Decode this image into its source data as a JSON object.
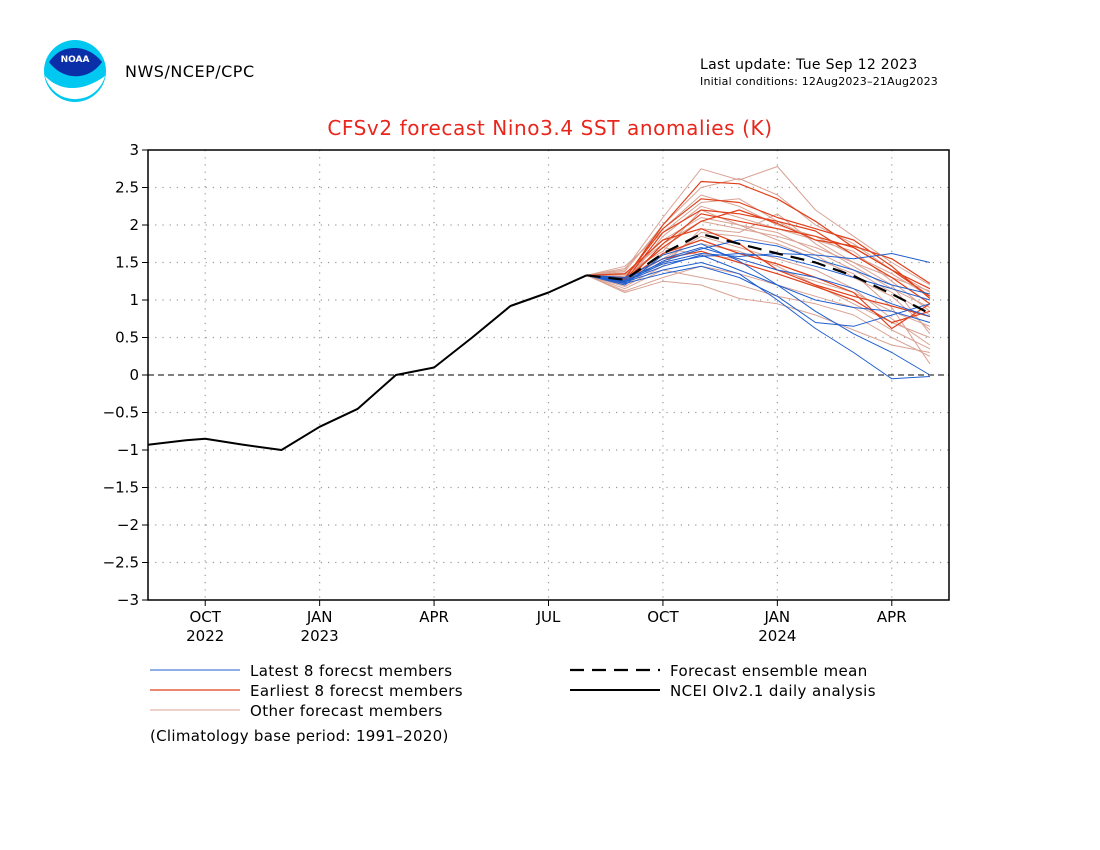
{
  "header": {
    "agency": "NWS/NCEP/CPC",
    "last_update": "Last update: Tue Sep 12 2023",
    "initial_conditions": "Initial conditions: 12Aug2023–21Aug2023",
    "logo_text": "NOAA"
  },
  "footer": {
    "base_period": "(Climatology base period: 1991–2020)"
  },
  "colors": {
    "title": "#e8261c",
    "latest": "#1f5fd0",
    "earliest": "#e0401a",
    "other": "#d9a394",
    "mean": "#000000",
    "analysis": "#000000"
  },
  "chart_data": {
    "type": "line",
    "title": "CFSv2 forecast Nino3.4 SST anomalies (K)",
    "xlabel": "",
    "ylabel": "",
    "x_units": "months from Sep 2022 (month midpoints)",
    "xlim": [
      -0.5,
      20.5
    ],
    "ylim": [
      -3,
      3
    ],
    "yticks": [
      3,
      2.5,
      2,
      1.5,
      1,
      0.5,
      0,
      -0.5,
      -1,
      -1.5,
      -2,
      -2.5,
      -3
    ],
    "ytick_labels": [
      "3",
      "2.5",
      "2",
      "1.5",
      "1",
      "0.5",
      "0",
      "−0.5",
      "−1",
      "−1.5",
      "−2",
      "−2.5",
      "−3"
    ],
    "xticks": [
      {
        "x": 1,
        "label": "OCT",
        "year": "2022"
      },
      {
        "x": 4,
        "label": "JAN",
        "year": "2023"
      },
      {
        "x": 7,
        "label": "APR",
        "year": ""
      },
      {
        "x": 10,
        "label": "JUL",
        "year": ""
      },
      {
        "x": 13,
        "label": "OCT",
        "year": ""
      },
      {
        "x": 16,
        "label": "JAN",
        "year": "2024"
      },
      {
        "x": 19,
        "label": "APR",
        "year": ""
      }
    ],
    "grid": true,
    "zero_line": true,
    "legend": [
      {
        "label": "Latest 8 forecst members",
        "style": "latest"
      },
      {
        "label": "Earliest 8 forecst members",
        "style": "earliest"
      },
      {
        "label": "Other forecast members",
        "style": "other"
      },
      {
        "label": "Forecast ensemble mean",
        "style": "mean"
      },
      {
        "label": "NCEI OIv2.1 daily analysis",
        "style": "analysis"
      }
    ],
    "analysis": {
      "name": "NCEI OIv2.1 daily analysis",
      "x": [
        -0.5,
        0.5,
        1,
        2,
        3,
        4,
        5,
        6,
        7,
        8,
        9,
        10,
        11
      ],
      "y": [
        -0.93,
        -0.87,
        -0.85,
        -0.93,
        -1.0,
        -0.69,
        -0.45,
        0.0,
        0.1,
        0.5,
        0.92,
        1.1,
        1.33
      ]
    },
    "forecast_x": [
      11,
      12,
      13,
      14,
      15,
      16,
      17,
      18,
      19,
      20
    ],
    "ensemble_mean": {
      "name": "Forecast ensemble mean",
      "y": [
        1.33,
        1.27,
        1.62,
        1.88,
        1.75,
        1.62,
        1.5,
        1.32,
        1.08,
        0.82
      ]
    },
    "latest_members": [
      [
        1.33,
        1.3,
        1.55,
        1.7,
        1.55,
        1.4,
        1.3,
        1.15,
        0.95,
        0.78
      ],
      [
        1.33,
        1.25,
        1.45,
        1.6,
        1.4,
        1.2,
        1.0,
        0.9,
        0.85,
        0.7
      ],
      [
        1.33,
        1.22,
        1.35,
        1.45,
        1.3,
        1.05,
        0.7,
        0.65,
        0.8,
        0.95
      ],
      [
        1.33,
        1.28,
        1.5,
        1.62,
        1.58,
        1.62,
        1.6,
        1.55,
        1.62,
        1.5
      ],
      [
        1.33,
        1.2,
        1.6,
        1.75,
        1.52,
        1.2,
        0.85,
        0.55,
        0.3,
        0.0
      ],
      [
        1.33,
        1.24,
        1.4,
        1.5,
        1.35,
        1.0,
        0.62,
        0.3,
        -0.05,
        -0.02
      ],
      [
        1.33,
        1.26,
        1.48,
        1.58,
        1.62,
        1.58,
        1.45,
        1.3,
        1.15,
        1.0
      ],
      [
        1.33,
        1.23,
        1.52,
        1.68,
        1.8,
        1.72,
        1.55,
        1.4,
        1.2,
        1.08
      ]
    ],
    "earliest_members": [
      [
        1.33,
        1.28,
        2.0,
        2.58,
        2.55,
        2.35,
        2.05,
        1.7,
        1.4,
        1.15
      ],
      [
        1.33,
        1.22,
        1.75,
        2.15,
        2.05,
        1.95,
        1.85,
        1.7,
        1.4,
        1.05
      ],
      [
        1.33,
        1.3,
        1.55,
        1.65,
        1.5,
        1.35,
        1.18,
        1.0,
        0.7,
        0.85
      ],
      [
        1.33,
        1.25,
        1.9,
        2.2,
        2.15,
        2.05,
        1.92,
        1.6,
        1.3,
        0.95
      ],
      [
        1.33,
        1.35,
        1.8,
        1.95,
        1.75,
        1.4,
        1.2,
        1.05,
        0.92,
        0.78
      ],
      [
        1.33,
        1.27,
        1.7,
        2.05,
        2.2,
        2.02,
        1.8,
        1.72,
        1.55,
        1.22
      ],
      [
        1.33,
        1.24,
        1.62,
        1.8,
        1.62,
        1.48,
        1.3,
        1.1,
        0.62,
        0.95
      ],
      [
        1.33,
        1.29,
        1.95,
        2.35,
        2.3,
        2.1,
        1.95,
        1.8,
        1.45,
        1.02
      ]
    ],
    "other_members": [
      [
        1.33,
        1.4,
        2.1,
        2.75,
        2.6,
        2.78,
        2.2,
        1.85,
        1.5,
        1.2
      ],
      [
        1.33,
        1.38,
        2.0,
        2.5,
        2.62,
        2.4,
        2.0,
        1.75,
        1.4,
        1.1
      ],
      [
        1.33,
        1.15,
        1.4,
        1.3,
        1.2,
        1.05,
        0.95,
        0.8,
        0.5,
        0.25
      ],
      [
        1.33,
        1.1,
        1.25,
        1.2,
        1.02,
        0.95,
        0.8,
        0.6,
        0.4,
        0.3
      ],
      [
        1.33,
        1.32,
        1.8,
        2.1,
        2.0,
        1.9,
        1.65,
        1.4,
        1.1,
        0.8
      ],
      [
        1.33,
        1.45,
        1.9,
        2.3,
        2.35,
        2.05,
        1.8,
        1.5,
        1.2,
        0.55
      ],
      [
        1.33,
        1.2,
        1.5,
        1.9,
        1.85,
        1.75,
        1.55,
        1.35,
        0.9,
        0.15
      ],
      [
        1.33,
        1.3,
        1.7,
        1.6,
        1.55,
        1.4,
        1.25,
        1.1,
        0.85,
        0.65
      ],
      [
        1.33,
        1.18,
        1.45,
        1.95,
        1.9,
        2.15,
        1.75,
        1.45,
        1.15,
        0.9
      ],
      [
        1.33,
        1.36,
        1.65,
        2.2,
        2.0,
        1.8,
        1.6,
        1.3,
        1.05,
        0.6
      ],
      [
        1.33,
        1.26,
        1.55,
        1.85,
        1.7,
        1.55,
        1.4,
        1.15,
        0.75,
        0.4
      ],
      [
        1.33,
        1.42,
        1.95,
        2.4,
        2.25,
        2.0,
        1.85,
        1.6,
        1.35,
        1.05
      ],
      [
        1.33,
        1.12,
        1.3,
        1.45,
        1.35,
        1.2,
        1.05,
        0.9,
        0.6,
        0.35
      ],
      [
        1.33,
        1.34,
        1.75,
        2.05,
        1.95,
        1.85,
        1.7,
        1.5,
        1.3,
        1.12
      ],
      [
        1.33,
        1.28,
        1.6,
        1.75,
        1.65,
        1.45,
        1.2,
        0.95,
        0.7,
        0.5
      ],
      [
        1.33,
        1.22,
        1.85,
        2.25,
        2.1,
        1.95,
        1.8,
        1.65,
        1.25,
        0.85
      ]
    ]
  }
}
